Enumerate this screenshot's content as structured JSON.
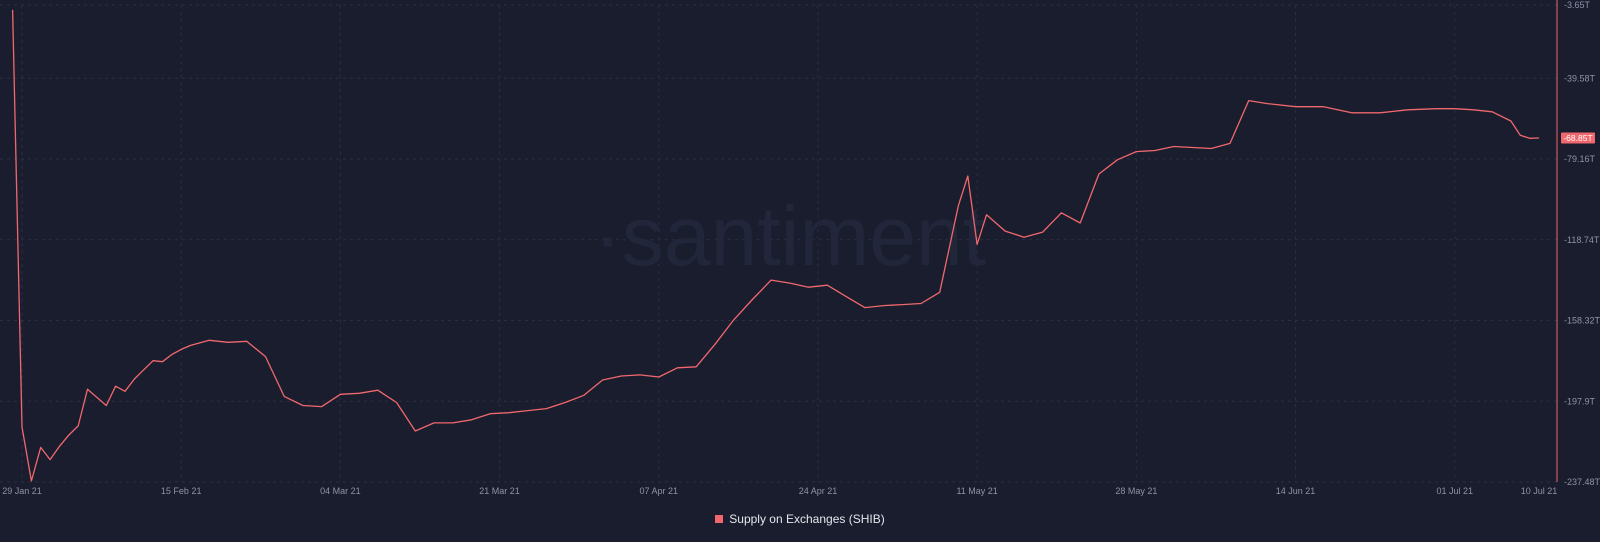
{
  "watermark": "·santiment",
  "colors": {
    "series": "#f0686d",
    "background": "#1a1d2e"
  },
  "chart_data": {
    "type": "line",
    "title": "",
    "y_axis_position": "right",
    "y_ticks": [
      "-3.65T",
      "-39.58T",
      "-79.16T",
      "-118.74T",
      "-158.32T",
      "-197.9T",
      "-237.48T"
    ],
    "y_tick_values": [
      -3.65,
      -39.58,
      -79.16,
      -118.74,
      -158.32,
      -197.9,
      -237.48
    ],
    "ylim": [
      -237.48,
      -3.65
    ],
    "y_unit": "T",
    "x_ticks": [
      "29 Jan 21",
      "15 Feb 21",
      "04 Mar 21",
      "21 Mar 21",
      "07 Apr 21",
      "24 Apr 21",
      "11 May 21",
      "28 May 21",
      "14 Jun 21",
      "01 Jul 21",
      "10 Jul 21"
    ],
    "x_tick_dates": [
      "2021-01-29",
      "2021-02-15",
      "2021-03-04",
      "2021-03-21",
      "2021-04-07",
      "2021-04-24",
      "2021-05-11",
      "2021-05-28",
      "2021-06-14",
      "2021-07-01",
      "2021-07-10"
    ],
    "current_value_label": "-68.85T",
    "grid": true,
    "legend_position": "bottom-center",
    "series": [
      {
        "name": "Supply on Exchanges (SHIB)",
        "x": [
          "2021-01-28",
          "2021-01-29",
          "2021-01-30",
          "2021-01-31",
          "2021-02-01",
          "2021-02-02",
          "2021-02-03",
          "2021-02-04",
          "2021-02-05",
          "2021-02-06",
          "2021-02-07",
          "2021-02-08",
          "2021-02-09",
          "2021-02-10",
          "2021-02-11",
          "2021-02-12",
          "2021-02-13",
          "2021-02-14",
          "2021-02-15",
          "2021-02-16",
          "2021-02-18",
          "2021-02-20",
          "2021-02-22",
          "2021-02-24",
          "2021-02-26",
          "2021-02-28",
          "2021-03-02",
          "2021-03-04",
          "2021-03-06",
          "2021-03-08",
          "2021-03-10",
          "2021-03-12",
          "2021-03-14",
          "2021-03-16",
          "2021-03-18",
          "2021-03-20",
          "2021-03-22",
          "2021-03-24",
          "2021-03-26",
          "2021-03-28",
          "2021-03-30",
          "2021-04-01",
          "2021-04-03",
          "2021-04-05",
          "2021-04-07",
          "2021-04-09",
          "2021-04-11",
          "2021-04-13",
          "2021-04-15",
          "2021-04-17",
          "2021-04-19",
          "2021-04-21",
          "2021-04-23",
          "2021-04-25",
          "2021-04-27",
          "2021-04-29",
          "2021-05-01",
          "2021-05-03",
          "2021-05-05",
          "2021-05-07",
          "2021-05-09",
          "2021-05-10",
          "2021-05-11",
          "2021-05-12",
          "2021-05-14",
          "2021-05-16",
          "2021-05-18",
          "2021-05-20",
          "2021-05-22",
          "2021-05-24",
          "2021-05-26",
          "2021-05-28",
          "2021-05-30",
          "2021-06-01",
          "2021-06-03",
          "2021-06-05",
          "2021-06-07",
          "2021-06-09",
          "2021-06-11",
          "2021-06-14",
          "2021-06-17",
          "2021-06-20",
          "2021-06-23",
          "2021-06-26",
          "2021-06-29",
          "2021-07-01",
          "2021-07-03",
          "2021-07-05",
          "2021-07-07",
          "2021-07-08",
          "2021-07-09",
          "2021-07-10"
        ],
        "values": [
          -6.0,
          -210.5,
          -237.0,
          -220.5,
          -226.5,
          -220.0,
          -214.5,
          -210.0,
          -192.0,
          -196.0,
          -200.0,
          -190.5,
          -193.0,
          -187.0,
          -182.5,
          -178.0,
          -178.5,
          -175.0,
          -172.5,
          -170.5,
          -168.0,
          -169.0,
          -168.5,
          -176.0,
          -195.5,
          -200.0,
          -200.5,
          -194.5,
          -194.0,
          -192.5,
          -198.5,
          -212.5,
          -208.5,
          -208.5,
          -207.0,
          -204.0,
          -203.5,
          -202.5,
          -201.5,
          -198.5,
          -195.0,
          -187.5,
          -185.5,
          -185.0,
          -186.0,
          -181.5,
          -181.0,
          -170.0,
          -158.0,
          -148.0,
          -138.5,
          -140.0,
          -142.0,
          -141.0,
          -146.5,
          -152.0,
          -151.0,
          -150.5,
          -150.0,
          -144.5,
          -102.0,
          -87.5,
          -121.0,
          -106.5,
          -114.5,
          -117.5,
          -115.0,
          -105.5,
          -110.5,
          -86.5,
          -79.5,
          -75.5,
          -75.0,
          -73.0,
          -73.5,
          -74.0,
          -71.5,
          -50.5,
          -52.0,
          -53.5,
          -53.5,
          -56.5,
          -56.5,
          -55.0,
          -54.5,
          -54.5,
          -55.0,
          -56.0,
          -60.5,
          -67.5,
          -69.0,
          -68.85
        ]
      }
    ]
  }
}
